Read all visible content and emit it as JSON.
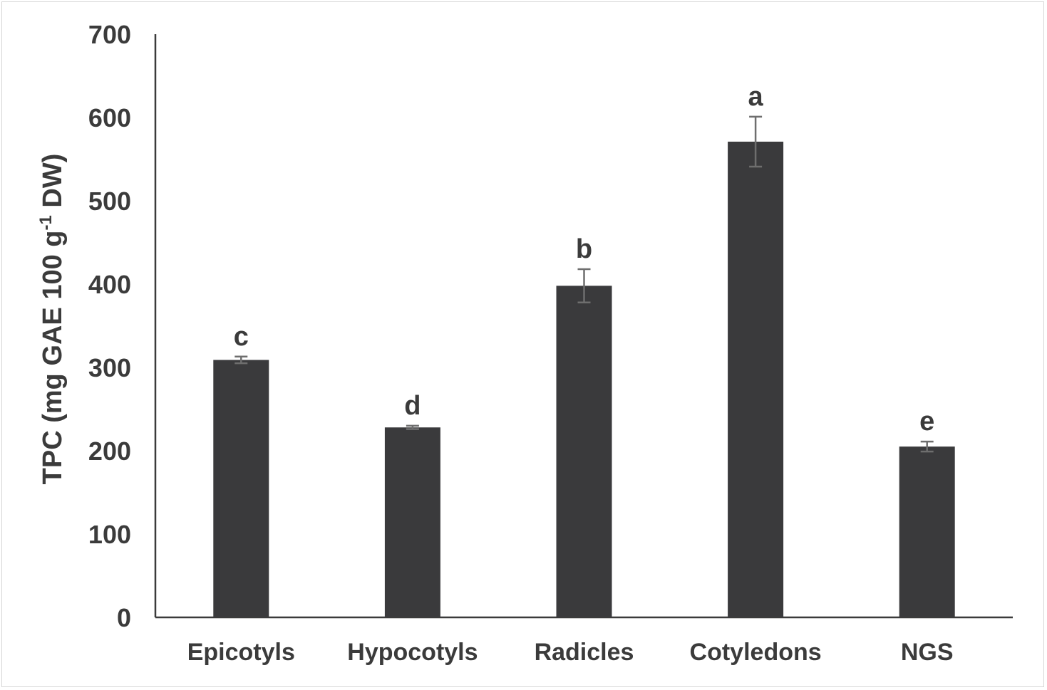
{
  "chart_data": {
    "type": "bar",
    "categories": [
      "Epicotyls",
      "Hypocotyls",
      "Radicles",
      "Cotyledons",
      "NGS"
    ],
    "values": [
      309,
      228,
      398,
      571,
      205
    ],
    "errors": [
      4,
      2,
      20,
      30,
      6
    ],
    "significance_labels": [
      "c",
      "d",
      "b",
      "a",
      "e"
    ],
    "ylabel": {
      "prefix": "TPC (mg GAE 100 g",
      "sup": "-1",
      "suffix": " DW)"
    },
    "xlabel": "",
    "ylim": [
      0,
      700
    ],
    "yticks": [
      "0",
      "100",
      "200",
      "300",
      "400",
      "500",
      "600",
      "700"
    ],
    "grid": false,
    "colors": {
      "bar": "#3a3a3c",
      "error": "#6e6e6e",
      "axis": "#3b3b3b"
    }
  }
}
